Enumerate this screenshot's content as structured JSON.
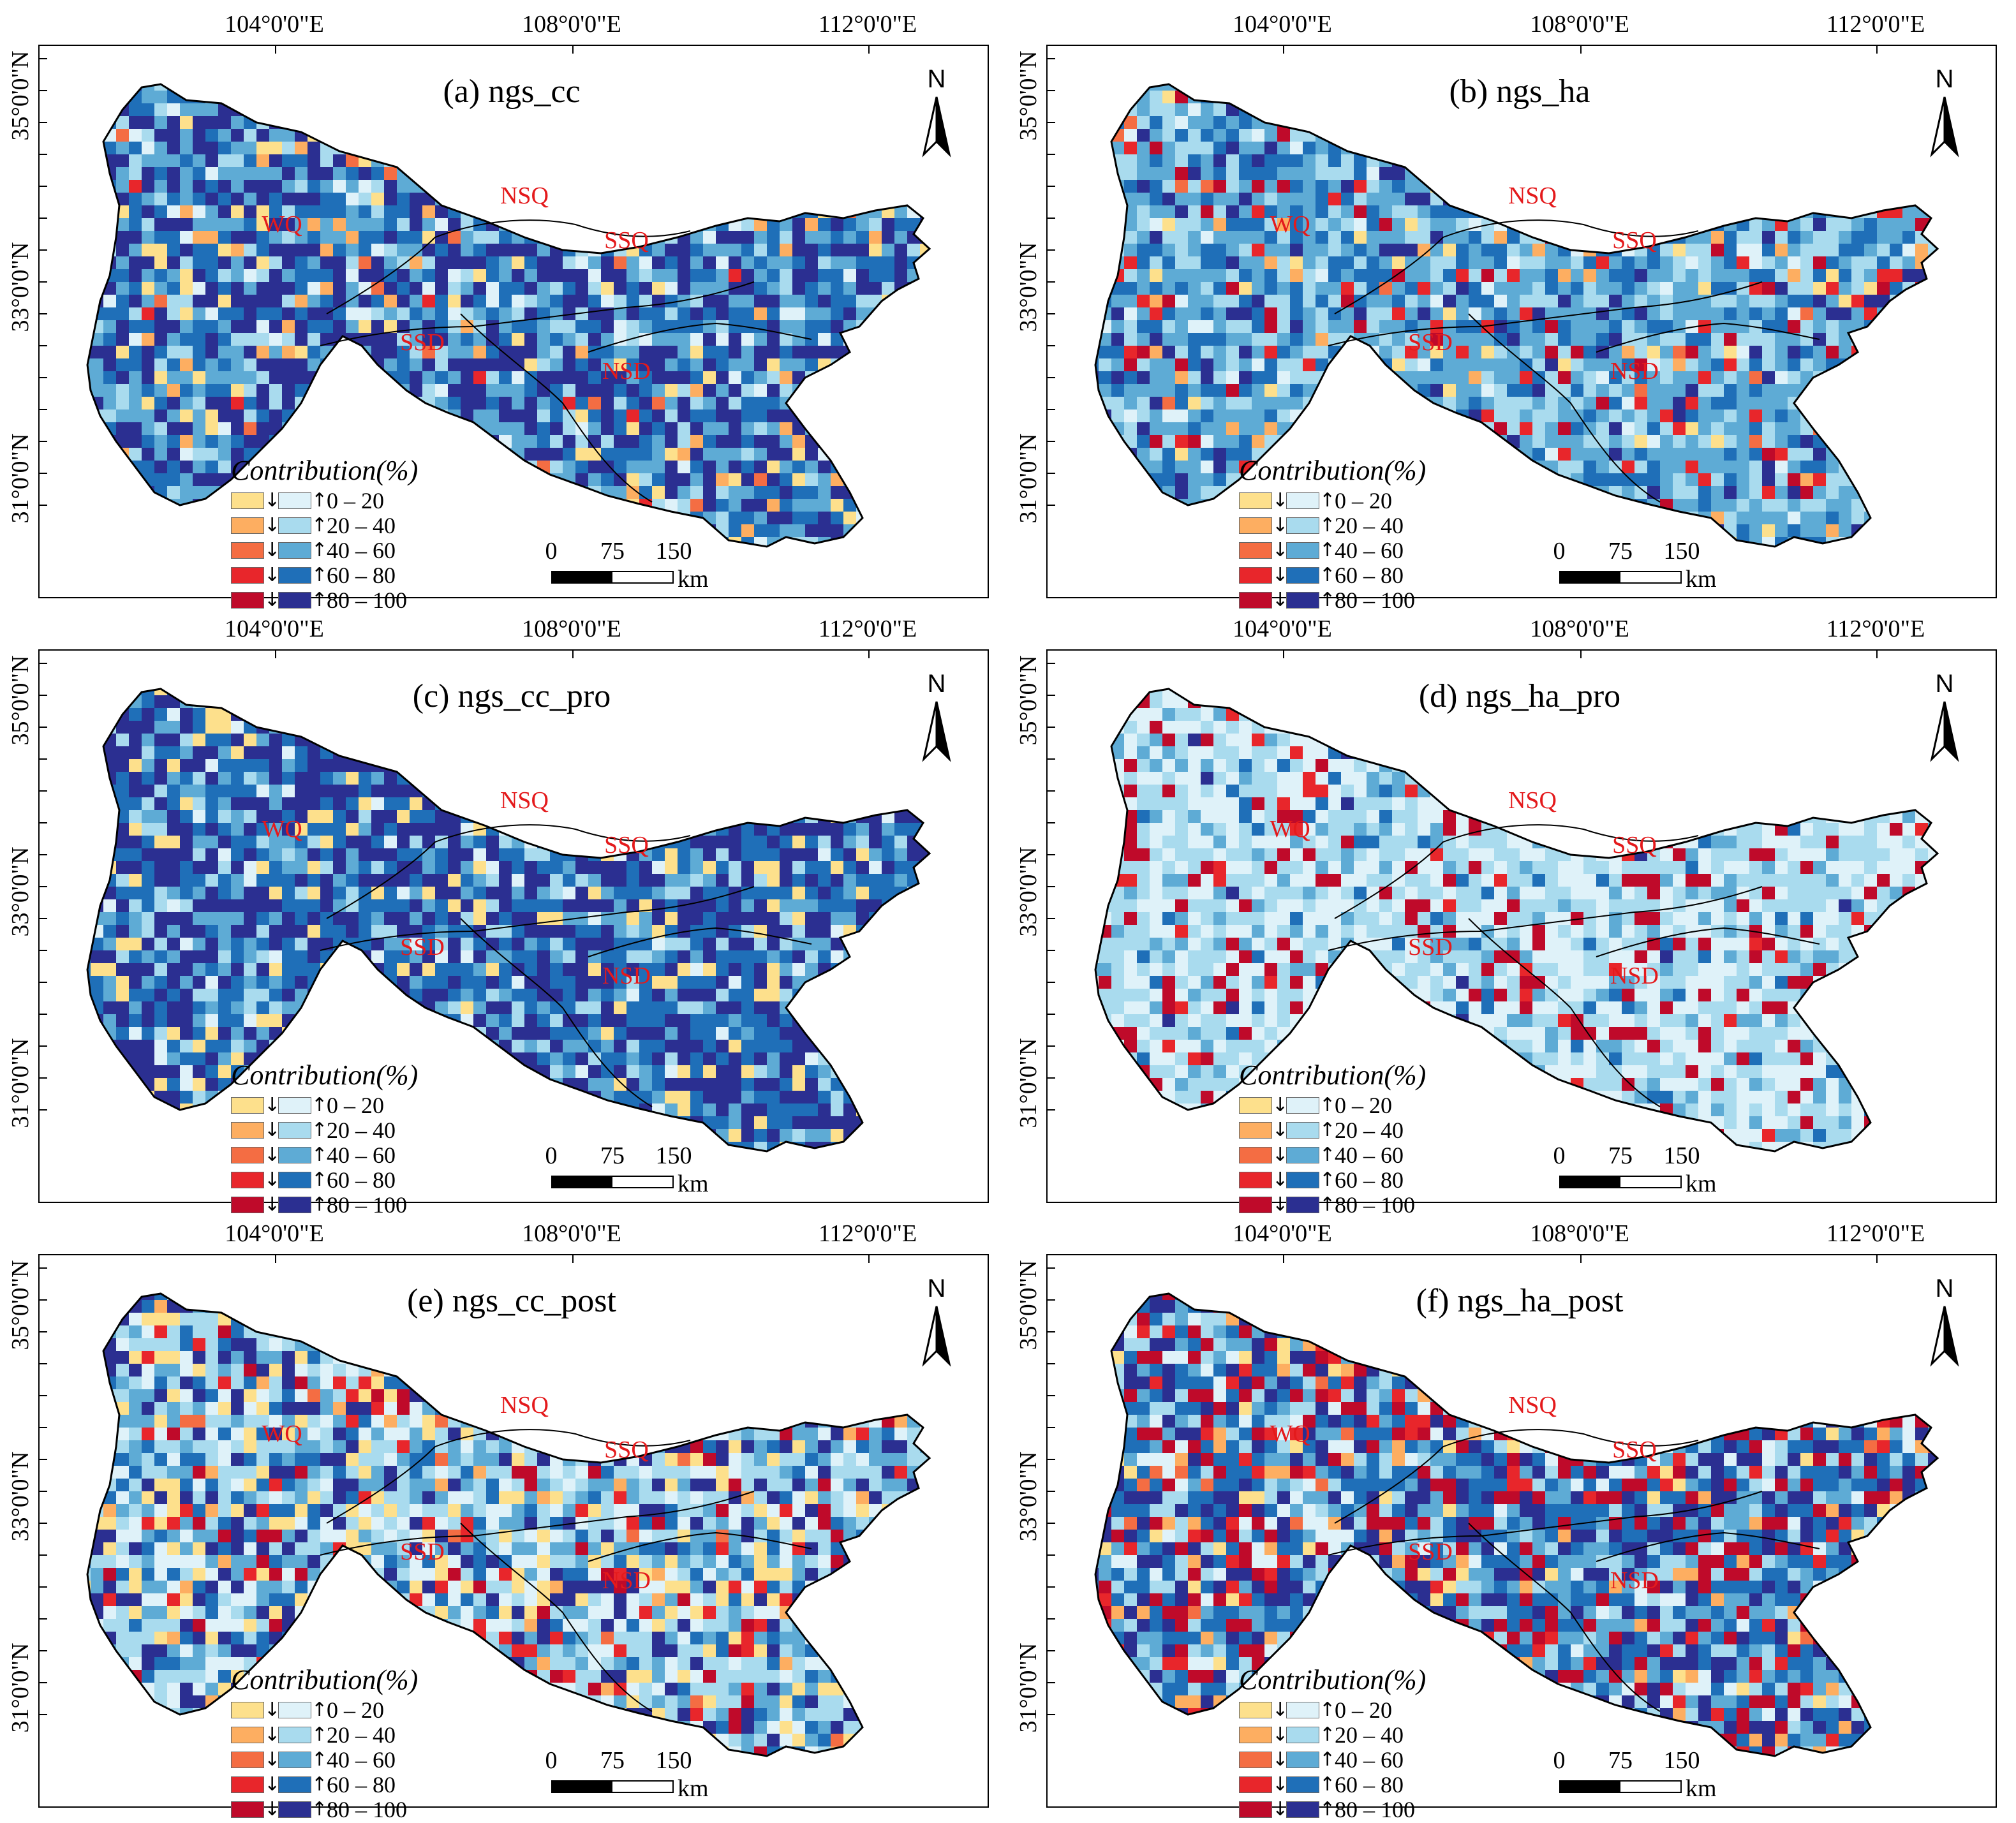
{
  "lon_labels": [
    "104°0'0\"E",
    "108°0'0\"E",
    "112°0'0\"E"
  ],
  "lat_labels": [
    "35°0'0\"N",
    "33°0'0\"N",
    "31°0'0\"N"
  ],
  "regions": [
    "WQ",
    "NSQ",
    "SSQ",
    "SSD",
    "NSD"
  ],
  "legend": {
    "title": "Contribution(%)",
    "classes": [
      "0 – 20",
      "20 – 40",
      "40 – 60",
      "60 – 80",
      "80 – 100"
    ],
    "decrease_colors": [
      "#fde08c",
      "#fdae61",
      "#f46d43",
      "#e8262b",
      "#bf0a2a"
    ],
    "increase_colors": [
      "#dff2f9",
      "#a9dbee",
      "#5eabd5",
      "#1f6fb8",
      "#2b2f91"
    ],
    "decrease_arrow": "↓",
    "increase_arrow": "↑"
  },
  "scale": {
    "ticks": [
      "0",
      "75",
      "150"
    ],
    "unit": "km"
  },
  "north_label": "N",
  "panels": [
    {
      "title": "(a) ngs_cc",
      "weights": [
        4,
        2,
        1,
        1,
        0,
        4,
        13,
        23,
        22,
        30
      ]
    },
    {
      "title": "(b) ngs_ha",
      "weights": [
        3,
        2,
        1,
        4,
        3,
        4,
        24,
        35,
        18,
        6
      ]
    },
    {
      "title": "(c) ngs_cc_pro",
      "weights": [
        8,
        0,
        0,
        0,
        0,
        4,
        10,
        14,
        30,
        34
      ]
    },
    {
      "title": "(d) ngs_ha_pro",
      "weights": [
        0,
        0,
        0,
        2,
        10,
        35,
        33,
        14,
        5,
        1
      ]
    },
    {
      "title": "(e) ngs_cc_post",
      "weights": [
        10,
        2,
        1,
        5,
        3,
        16,
        23,
        16,
        10,
        14
      ]
    },
    {
      "title": "(f) ngs_ha_post",
      "weights": [
        3,
        3,
        1,
        5,
        12,
        8,
        12,
        13,
        22,
        21
      ]
    }
  ]
}
